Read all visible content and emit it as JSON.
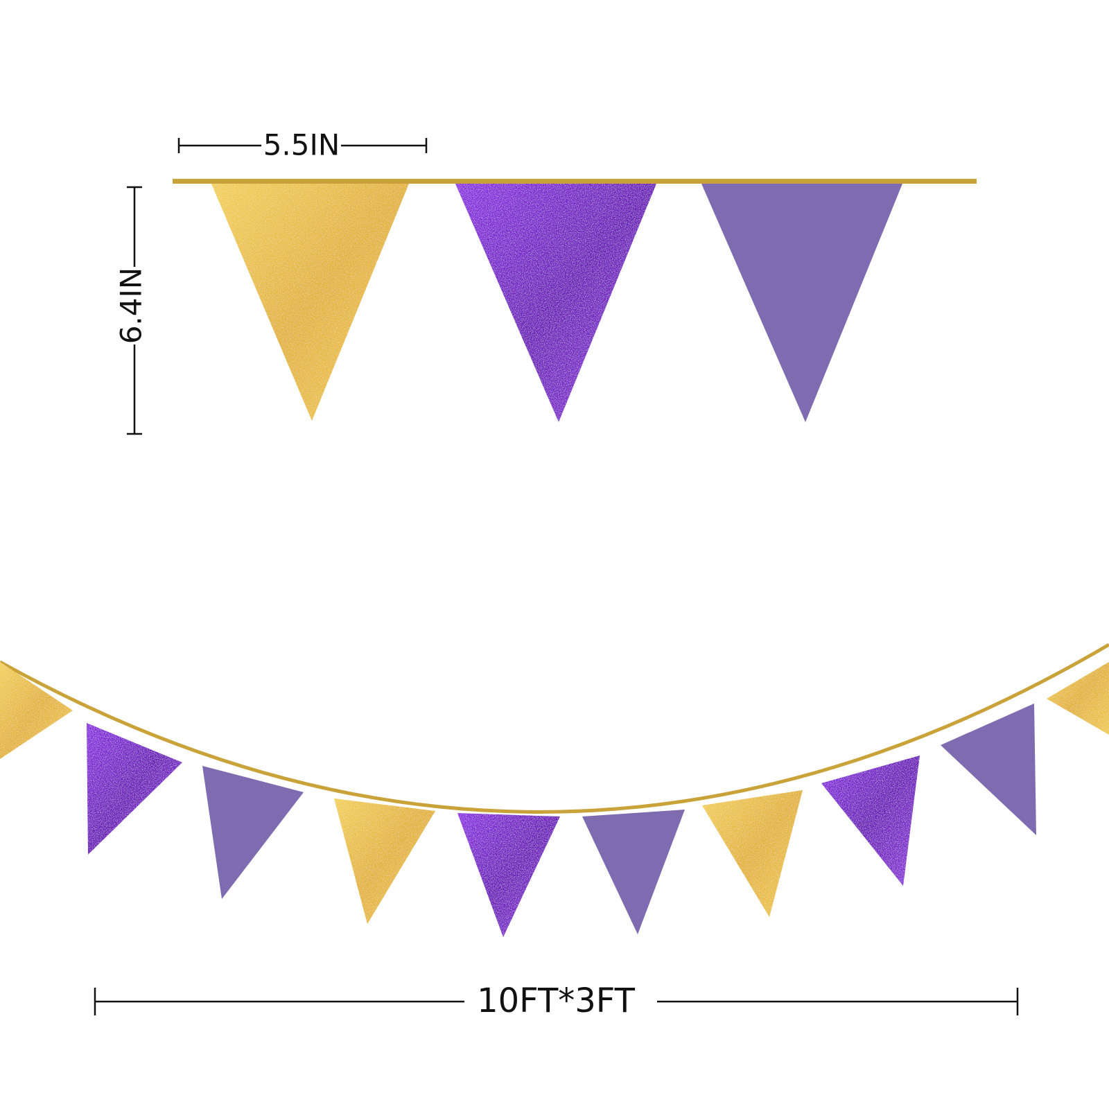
{
  "dimensions": {
    "width": "5.5IN",
    "height": "6.4IN",
    "length": "10FT*3FT"
  }
}
